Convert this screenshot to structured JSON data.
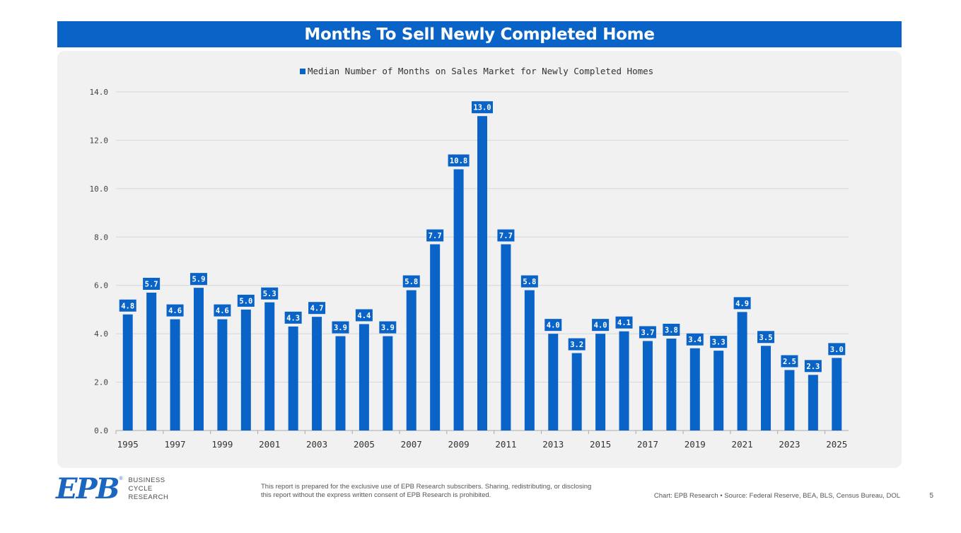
{
  "header": {
    "title": "Months To Sell Newly Completed Home"
  },
  "chart_data": {
    "type": "bar",
    "legend": "Median Number of Months on Sales Market for Newly Completed Homes",
    "legend_position": "top-center",
    "x": [
      1995,
      1996,
      1997,
      1998,
      1999,
      2000,
      2001,
      2002,
      2003,
      2004,
      2005,
      2006,
      2007,
      2008,
      2009,
      2010,
      2011,
      2012,
      2013,
      2014,
      2015,
      2016,
      2017,
      2018,
      2019,
      2020,
      2021,
      2022,
      2023,
      2024,
      2025
    ],
    "values": [
      4.8,
      5.7,
      4.6,
      5.9,
      4.6,
      5.0,
      5.3,
      4.3,
      4.7,
      3.9,
      4.4,
      3.9,
      5.8,
      7.7,
      10.8,
      13.0,
      7.7,
      5.8,
      4.0,
      3.2,
      4.0,
      4.1,
      3.7,
      3.8,
      3.4,
      3.3,
      4.9,
      3.5,
      2.5,
      2.3,
      3.0
    ],
    "value_labels": [
      "4.8",
      "5.7",
      "4.6",
      "5.9",
      "4.6",
      "5.0",
      "5.3",
      "4.3",
      "4.7",
      "3.9",
      "4.4",
      "3.9",
      "5.8",
      "7.7",
      "10.8",
      "13.0",
      "7.7",
      "5.8",
      "4.0",
      "3.2",
      "4.0",
      "4.1",
      "3.7",
      "3.8",
      "3.4",
      "3.3",
      "4.9",
      "3.5",
      "2.5",
      "2.3",
      "3.0"
    ],
    "x_tick_labels": [
      "1995",
      "1997",
      "1999",
      "2001",
      "2003",
      "2005",
      "2007",
      "2009",
      "2011",
      "2013",
      "2015",
      "2017",
      "2019",
      "2021",
      "2023",
      "2025"
    ],
    "y_ticks": [
      "0.0",
      "2.0",
      "4.0",
      "6.0",
      "8.0",
      "10.0",
      "12.0",
      "14.0"
    ],
    "ylim": [
      0,
      14
    ],
    "grid": true,
    "colors": {
      "bar": "#0a64c8",
      "label_bg": "#0a64c8",
      "label_text": "#ffffff",
      "grid": "#d6d6d6",
      "axis": "#aaaaaa"
    }
  },
  "footer": {
    "logo_text": "EPB",
    "logo_reg": "®",
    "logo_words": [
      "BUSINESS",
      "CYCLE",
      "RESEARCH"
    ],
    "disclaimer": "This report is prepared for the exclusive use of EPB Research subscribers. Sharing, redistributing, or disclosing this report without the express written consent of EPB Research is prohibited.",
    "source": "Chart: EPB Research  •  Source: Federal Reserve, BEA, BLS, Census Bureau, DOL",
    "page_number": "5"
  }
}
